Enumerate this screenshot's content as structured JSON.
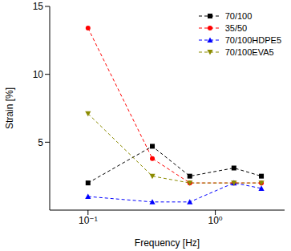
{
  "chart_data": {
    "type": "line",
    "x_label": "Frequency [Hz]",
    "y_label": "Strain [%]",
    "log": "x",
    "xlim": [
      0.05,
      3.5
    ],
    "xticks": [
      {
        "value": 0.1,
        "label": "10⁻¹"
      },
      {
        "value": 1,
        "label": "10⁰"
      }
    ],
    "ylim": [
      0,
      15
    ],
    "yticks": [
      5,
      10,
      15
    ],
    "grid": false,
    "legend": "top-right",
    "x": [
      0.1,
      0.32,
      0.63,
      1.4,
      2.3
    ],
    "series": [
      {
        "name": "70/100",
        "color": "#000000",
        "marker": "square",
        "line_style": "dashed",
        "values": [
          2.0,
          4.7,
          2.5,
          3.1,
          2.5
        ]
      },
      {
        "name": "35/50",
        "color": "#ff0000",
        "marker": "circle",
        "line_style": "dashed",
        "values": [
          13.4,
          3.8,
          2.0,
          2.0,
          2.0
        ]
      },
      {
        "name": "70/100HDPE5",
        "color": "#0000ff",
        "marker": "triangle-up",
        "line_style": "dashed",
        "values": [
          1.0,
          0.6,
          0.6,
          2.0,
          1.6
        ]
      },
      {
        "name": "70/100EVA5",
        "color": "#8b8b00",
        "marker": "triangle-down",
        "line_style": "dashed",
        "values": [
          7.1,
          2.5,
          2.0,
          2.0,
          2.0
        ]
      }
    ]
  }
}
